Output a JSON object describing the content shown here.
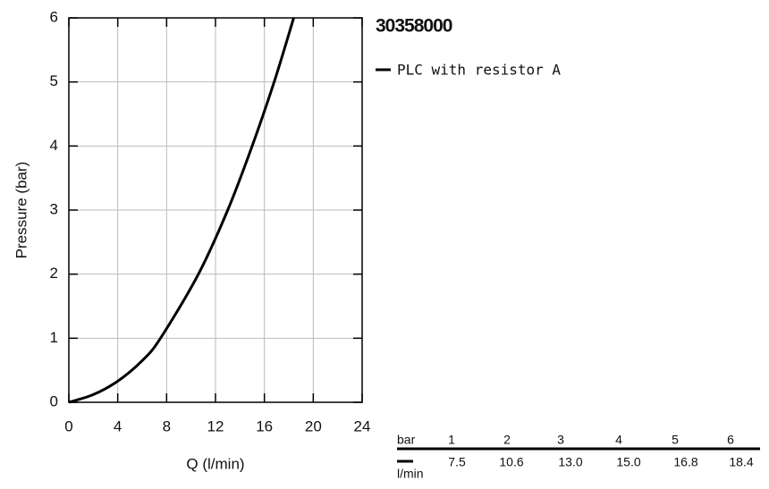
{
  "chart_data": {
    "type": "line",
    "title": "30358000",
    "xlabel": "Q (l/min)",
    "ylabel": "Pressure (bar)",
    "series": [
      {
        "name": "PLC with resistor A",
        "color": "#000000",
        "x": [
          0,
          2,
          4,
          6,
          7.5,
          10.6,
          13.0,
          15.0,
          16.8,
          18.4
        ],
        "values": [
          0,
          0.12,
          0.33,
          0.65,
          1,
          2,
          3,
          4,
          5,
          6
        ]
      }
    ],
    "xlim": [
      0,
      24
    ],
    "xticks": [
      0,
      4,
      8,
      12,
      16,
      20,
      24
    ],
    "ylim": [
      0,
      6
    ],
    "yticks": [
      0,
      1,
      2,
      3,
      4,
      5,
      6
    ],
    "grid": true
  },
  "table": {
    "header_label": "bar",
    "unit_label": "l/min",
    "pressures": [
      1,
      2,
      3,
      4,
      5,
      6
    ],
    "flows": [
      "7.5",
      "10.6",
      "13.0",
      "15.0",
      "16.8",
      "18.4"
    ]
  }
}
